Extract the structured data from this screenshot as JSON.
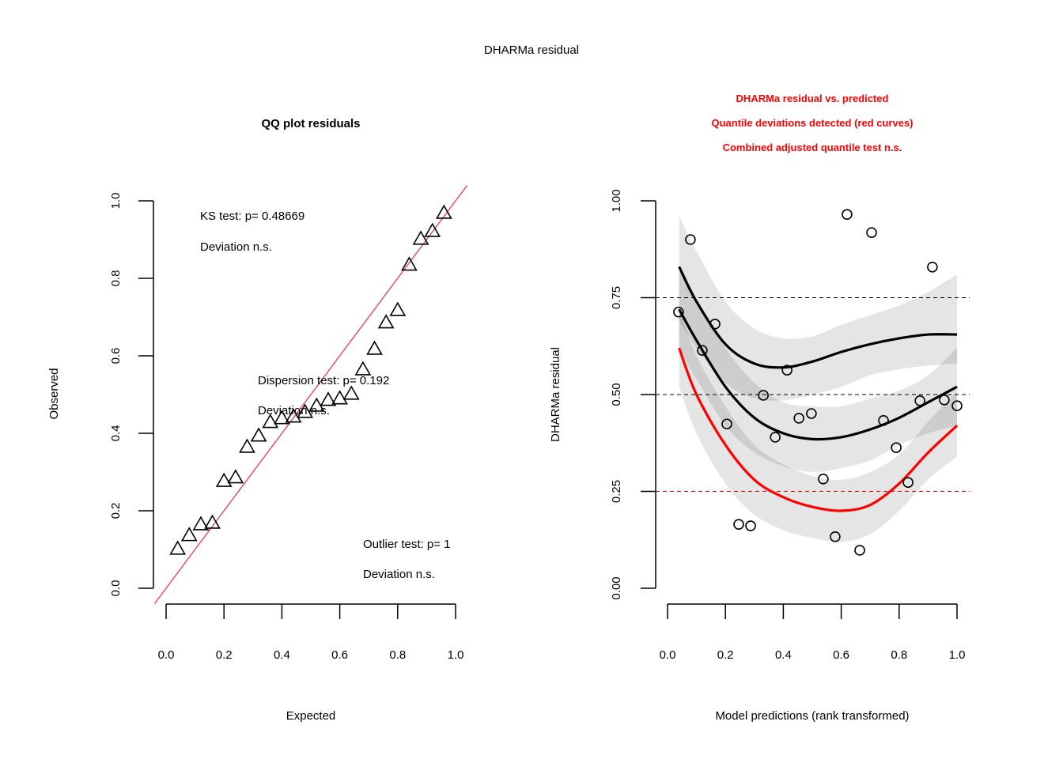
{
  "page_title": "DHARMa residual",
  "colors": {
    "qq_line": "#DF536B",
    "red": "#FF0000",
    "band_light": "#E0E0E0",
    "band_dark": "#C4C4C4",
    "black": "#000000"
  },
  "chart_data": [
    {
      "type": "scatter",
      "title": "QQ plot residuals",
      "xlabel": "Expected",
      "ylabel": "Observed",
      "xlim": [
        0,
        1
      ],
      "ylim": [
        0,
        1
      ],
      "xticks": [
        "0.0",
        "0.2",
        "0.4",
        "0.6",
        "0.8",
        "1.0"
      ],
      "yticks": [
        "0.0",
        "0.2",
        "0.4",
        "0.6",
        "0.8",
        "1.0"
      ],
      "marker": "triangle",
      "reference_line": "y = x",
      "points": {
        "x": [
          0.04,
          0.08,
          0.12,
          0.16,
          0.2,
          0.24,
          0.28,
          0.32,
          0.36,
          0.4,
          0.44,
          0.48,
          0.52,
          0.56,
          0.6,
          0.64,
          0.68,
          0.72,
          0.76,
          0.8,
          0.84,
          0.88,
          0.92,
          0.96
        ],
        "y": [
          0.102,
          0.137,
          0.165,
          0.169,
          0.277,
          0.286,
          0.365,
          0.394,
          0.429,
          0.439,
          0.443,
          0.455,
          0.471,
          0.486,
          0.49,
          0.502,
          0.565,
          0.618,
          0.686,
          0.718,
          0.835,
          0.902,
          0.922,
          0.969
        ]
      },
      "annotations": {
        "ks_test": "KS test: p= 0.48669",
        "ks_deviation": "Deviation  n.s.",
        "dispersion_test": "Dispersion test: p= 0.192",
        "dispersion_deviation": "Deviation  n.s.",
        "outlier_test": "Outlier test: p= 1",
        "outlier_deviation": "Deviation  n.s."
      }
    },
    {
      "type": "scatter",
      "title_lines": [
        "DHARMa residual vs. predicted",
        "Quantile deviations detected (red curves)",
        "Combined adjusted quantile test n.s."
      ],
      "xlabel": "Model predictions (rank transformed)",
      "ylabel": "DHARMa residual",
      "xlim": [
        0,
        1
      ],
      "ylim": [
        0,
        1
      ],
      "xticks": [
        "0.0",
        "0.2",
        "0.4",
        "0.6",
        "0.8",
        "1.0"
      ],
      "yticks": [
        "0.00",
        "0.25",
        "0.50",
        "0.75",
        "1.00"
      ],
      "marker": "circle",
      "hlines": [
        {
          "y": 0.25,
          "color": "red"
        },
        {
          "y": 0.5,
          "color": "black"
        },
        {
          "y": 0.75,
          "color": "black"
        }
      ],
      "points": {
        "x": [
          0.038,
          0.079,
          0.12,
          0.164,
          0.205,
          0.246,
          0.287,
          0.331,
          0.372,
          0.413,
          0.454,
          0.497,
          0.538,
          0.579,
          0.62,
          0.664,
          0.705,
          0.746,
          0.79,
          0.831,
          0.872,
          0.915,
          0.956,
          1.0
        ],
        "y": [
          0.713,
          0.9,
          0.614,
          0.682,
          0.424,
          0.165,
          0.161,
          0.498,
          0.39,
          0.563,
          0.439,
          0.451,
          0.282,
          0.133,
          0.965,
          0.098,
          0.918,
          0.433,
          0.363,
          0.273,
          0.484,
          0.829,
          0.486,
          0.471
        ]
      },
      "quantile_curves": [
        {
          "name": "q0.75",
          "color": "black",
          "x": [
            0.04,
            0.1,
            0.2,
            0.3,
            0.4,
            0.5,
            0.6,
            0.7,
            0.8,
            0.9,
            1.0
          ],
          "y": [
            0.83,
            0.74,
            0.63,
            0.58,
            0.57,
            0.585,
            0.61,
            0.63,
            0.645,
            0.655,
            0.655
          ],
          "band_low": [
            0.69,
            0.62,
            0.53,
            0.49,
            0.485,
            0.5,
            0.52,
            0.55,
            0.565,
            0.575,
            0.58
          ],
          "band_high": [
            0.96,
            0.87,
            0.74,
            0.67,
            0.645,
            0.65,
            0.68,
            0.705,
            0.73,
            0.765,
            0.81
          ]
        },
        {
          "name": "q0.50",
          "color": "black",
          "x": [
            0.04,
            0.1,
            0.2,
            0.3,
            0.4,
            0.5,
            0.6,
            0.7,
            0.8,
            0.9,
            1.0
          ],
          "y": [
            0.72,
            0.64,
            0.52,
            0.44,
            0.4,
            0.385,
            0.39,
            0.41,
            0.44,
            0.48,
            0.52
          ],
          "band_low": [
            0.62,
            0.54,
            0.42,
            0.35,
            0.315,
            0.3,
            0.31,
            0.33,
            0.37,
            0.4,
            0.42
          ],
          "band_high": [
            0.82,
            0.74,
            0.62,
            0.53,
            0.48,
            0.47,
            0.47,
            0.49,
            0.51,
            0.55,
            0.62
          ]
        },
        {
          "name": "q0.25",
          "color": "red",
          "x": [
            0.04,
            0.1,
            0.2,
            0.3,
            0.4,
            0.5,
            0.6,
            0.7,
            0.8,
            0.9,
            1.0
          ],
          "y": [
            0.62,
            0.5,
            0.37,
            0.28,
            0.235,
            0.21,
            0.2,
            0.215,
            0.27,
            0.35,
            0.42
          ],
          "band_low": [
            0.52,
            0.4,
            0.27,
            0.19,
            0.15,
            0.13,
            0.12,
            0.14,
            0.2,
            0.28,
            0.34
          ],
          "band_high": [
            0.72,
            0.6,
            0.47,
            0.37,
            0.32,
            0.29,
            0.28,
            0.3,
            0.345,
            0.43,
            0.51
          ]
        }
      ]
    }
  ]
}
